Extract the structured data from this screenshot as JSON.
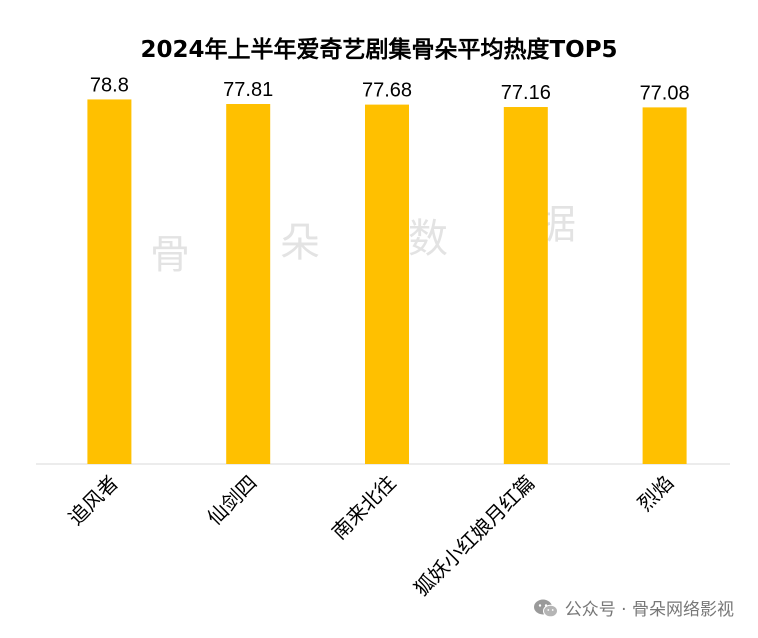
{
  "chart_data": {
    "type": "bar",
    "title": "2024年上半年爱奇艺剧集骨朵平均热度TOP5",
    "categories": [
      "追风者",
      "仙剑四",
      "南来北往",
      "狐妖小红娘月红篇",
      "烈焰"
    ],
    "values": [
      78.8,
      77.81,
      77.68,
      77.16,
      77.08
    ],
    "value_labels": [
      "78.8",
      "77.81",
      "77.68",
      "77.16",
      "77.08"
    ],
    "ylim": [
      0,
      83
    ],
    "bar_color": "#FFC000",
    "grid": false,
    "legend": "none",
    "xlabel": "",
    "ylabel": ""
  },
  "watermark": [
    "骨",
    "朵",
    "数",
    "据"
  ],
  "footer": {
    "icon": "wechat-icon",
    "text": "公众号 · 骨朵网络影视"
  }
}
